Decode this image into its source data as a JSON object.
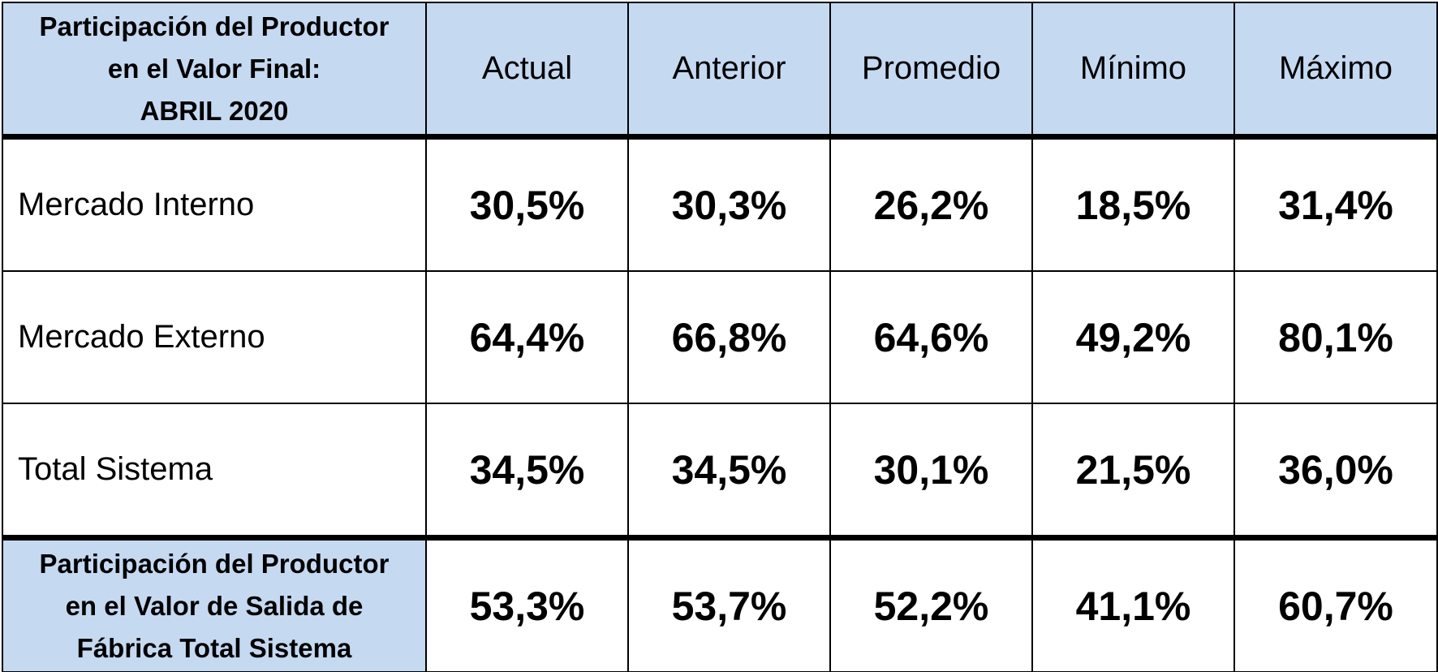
{
  "table": {
    "header": {
      "title_lines": [
        "Participación del Productor",
        "en el Valor Final:",
        "ABRIL 2020"
      ],
      "columns": [
        "Actual",
        "Anterior",
        "Promedio",
        "Mínimo",
        "Máximo"
      ]
    },
    "rows": [
      {
        "label_lines": [
          "Mercado Interno"
        ],
        "cells": [
          "30,5%",
          "30,3%",
          "26,2%",
          "18,5%",
          "31,4%"
        ]
      },
      {
        "label_lines": [
          "Mercado Externo"
        ],
        "cells": [
          "64,4%",
          "66,8%",
          "64,6%",
          "49,2%",
          "80,1%"
        ]
      },
      {
        "label_lines": [
          "Total Sistema"
        ],
        "cells": [
          "34,5%",
          "34,5%",
          "30,1%",
          "21,5%",
          "36,0%"
        ]
      },
      {
        "label_lines": [
          "Participación del Productor",
          "en el Valor de Salida de",
          "Fábrica Total Sistema"
        ],
        "cells": [
          "53,3%",
          "53,7%",
          "52,2%",
          "41,1%",
          "60,7%"
        ]
      }
    ]
  }
}
